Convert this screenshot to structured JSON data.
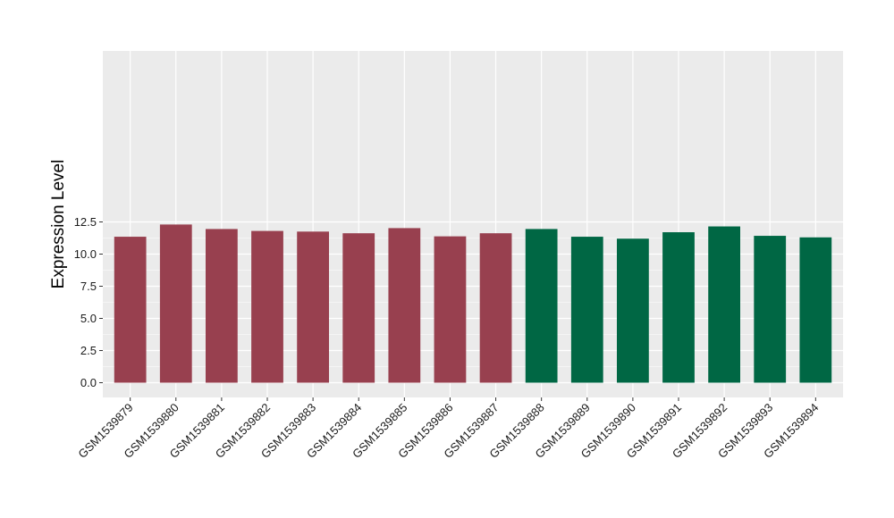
{
  "chart_data": {
    "type": "bar",
    "title": "",
    "xlabel": "",
    "ylabel": "Expression Level",
    "ylim": [
      0,
      12.9
    ],
    "yticks": [
      0.0,
      2.5,
      5.0,
      7.5,
      10.0,
      12.5
    ],
    "ytick_labels": [
      "0.0",
      "2.5",
      "5.0",
      "7.5",
      "10.0",
      "12.5"
    ],
    "grid": true,
    "legend": "none",
    "categories": [
      "GSM1539879",
      "GSM1539880",
      "GSM1539881",
      "GSM1539882",
      "GSM1539883",
      "GSM1539884",
      "GSM1539885",
      "GSM1539886",
      "GSM1539887",
      "GSM1539888",
      "GSM1539889",
      "GSM1539890",
      "GSM1539891",
      "GSM1539892",
      "GSM1539893",
      "GSM1539894"
    ],
    "values": [
      11.35,
      12.3,
      11.95,
      11.8,
      11.75,
      11.62,
      12.02,
      11.38,
      11.62,
      11.95,
      11.35,
      11.2,
      11.7,
      12.15,
      11.42,
      11.3
    ],
    "groups": [
      0,
      0,
      0,
      0,
      0,
      0,
      0,
      0,
      0,
      1,
      1,
      1,
      1,
      1,
      1,
      1
    ],
    "group_colors": [
      "#98404f",
      "#006744"
    ],
    "panel_color": "#ebebeb",
    "grid_color": "#ffffff"
  }
}
